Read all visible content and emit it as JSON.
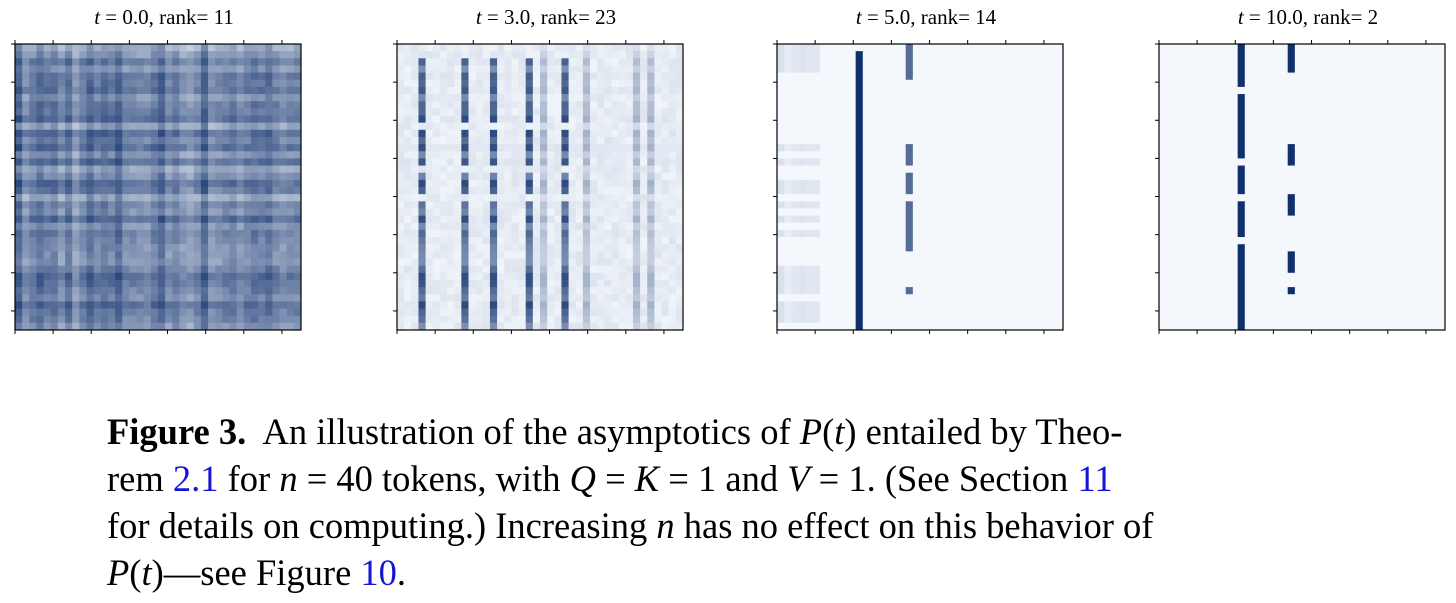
{
  "panels": [
    {
      "time": "0.0",
      "rank": "11",
      "density": "dense"
    },
    {
      "time": "3.0",
      "rank": "23",
      "density": "partial"
    },
    {
      "time": "5.0",
      "rank": "14",
      "density": "sparse"
    },
    {
      "time": "10.0",
      "rank": "2",
      "density": "collapsed"
    }
  ],
  "matrix_size": 40,
  "colormap": {
    "low": "#f4f8fd",
    "high": "#10306b"
  },
  "caption": {
    "label": "Figure 3.",
    "seg1": "An illustration of the asymptotics of",
    "P": "P",
    "t": "t",
    "seg2": "entailed by Theo-",
    "seg3": "rem",
    "ref_theorem": "2.1",
    "seg4": "for",
    "n": "n",
    "eq_n": "= 40 tokens, with",
    "Q": "Q",
    "eq_qk": "=",
    "K": "K",
    "eq_k1": "= 1 and",
    "V": "V",
    "eq_v1": "= 1. (See Section",
    "ref_section": "11",
    "seg5": "for details on computing.) Increasing",
    "seg6": "has no effect on this behavior of",
    "seg7": "—see Figure",
    "ref_figure": "10",
    "period": "."
  }
}
